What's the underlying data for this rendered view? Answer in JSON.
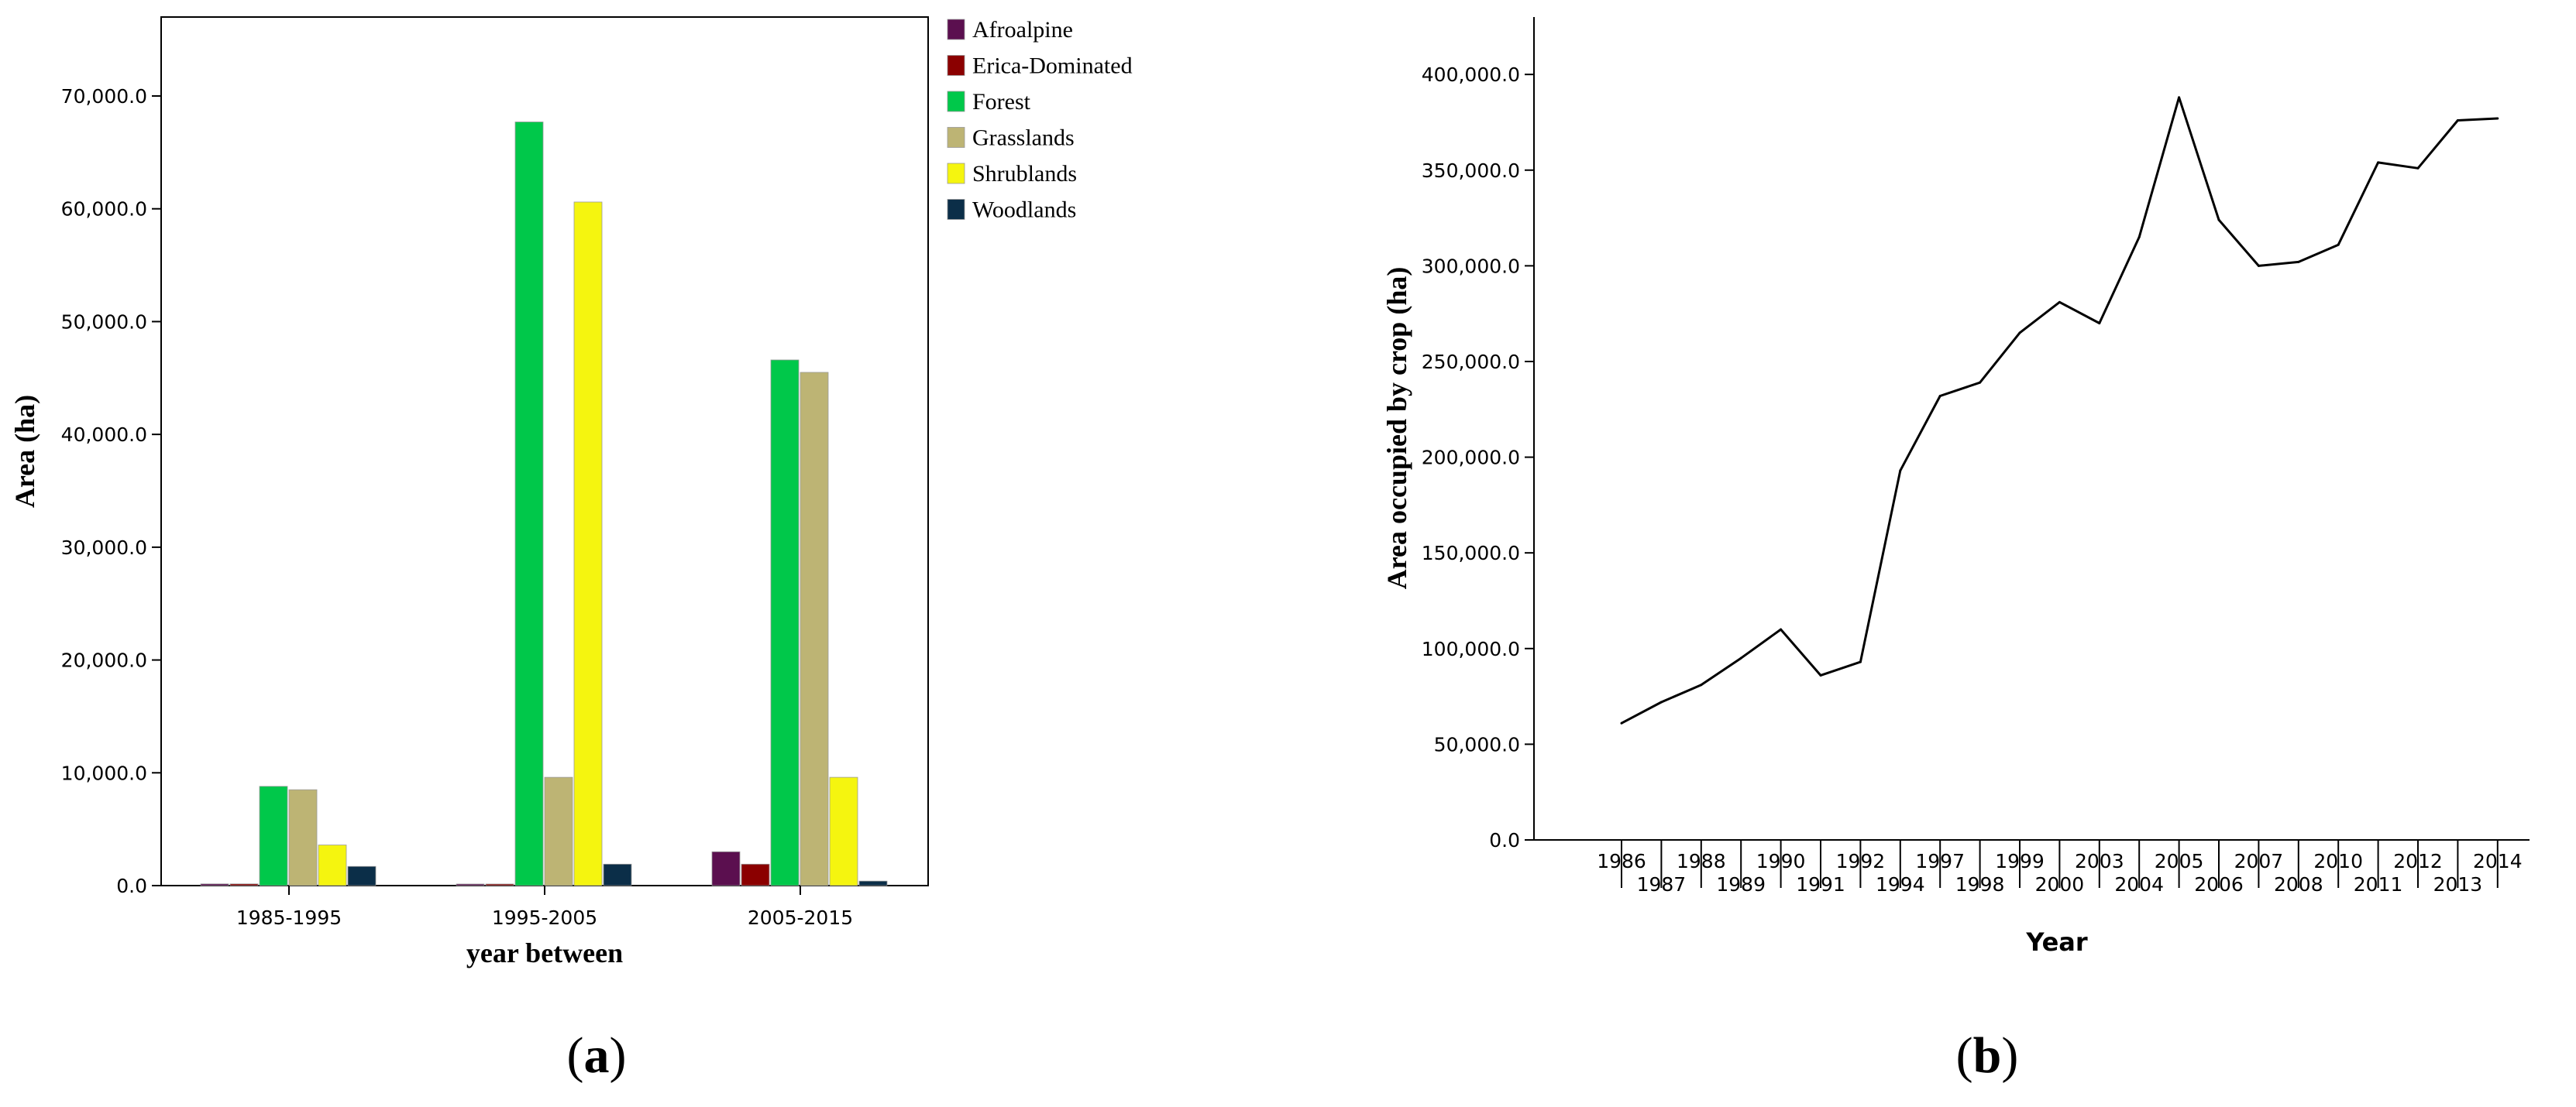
{
  "chart_data": [
    {
      "type": "bar",
      "panel_label": "a",
      "xlabel": "year between",
      "ylabel": "Area (ha)",
      "ylim": [
        0,
        77000
      ],
      "yticks": [
        0,
        10000,
        20000,
        30000,
        40000,
        50000,
        60000,
        70000
      ],
      "ytick_labels": [
        "0.0",
        "10,000.0",
        "20,000.0",
        "30,000.0",
        "40,000.0",
        "50,000.0",
        "60,000.0",
        "70,000.0"
      ],
      "legend_position": "top-right",
      "categories": [
        "1985-1995",
        "1995-2005",
        "2005-2015"
      ],
      "series": [
        {
          "name": "Afroalpine",
          "color": "#5b0f4f",
          "values": [
            150,
            0,
            3000
          ]
        },
        {
          "name": "Erica-Dominated",
          "color": "#8b0000",
          "values": [
            150,
            0,
            1900
          ]
        },
        {
          "name": "Forest",
          "color": "#00c84a",
          "values": [
            8800,
            67700,
            46600
          ]
        },
        {
          "name": "Grasslands",
          "color": "#bdb474",
          "values": [
            8500,
            9600,
            45500
          ]
        },
        {
          "name": "Shrublands",
          "color": "#f5f50f",
          "values": [
            3600,
            60600,
            9600
          ]
        },
        {
          "name": "Woodlands",
          "color": "#0b2e48",
          "values": [
            1700,
            1900,
            400
          ]
        }
      ]
    },
    {
      "type": "line",
      "panel_label": "b",
      "xlabel": "Year",
      "ylabel": "Area occupied by crop  (ha)",
      "ylim": [
        0,
        430000
      ],
      "yticks": [
        0,
        50000,
        100000,
        150000,
        200000,
        250000,
        300000,
        350000,
        400000
      ],
      "ytick_labels": [
        "0.0",
        "50,000.0",
        "100,000.0",
        "150,000.0",
        "200,000.0",
        "250,000.0",
        "300,000.0",
        "350,000.0",
        "400,000.0"
      ],
      "x": [
        "1986",
        "1987",
        "1988",
        "1989",
        "1990",
        "1991",
        "1992",
        "1994",
        "1997",
        "1998",
        "1999",
        "2000",
        "2003",
        "2004",
        "2005",
        "2006",
        "2007",
        "2008",
        "2010",
        "2011",
        "2012",
        "2013",
        "2014"
      ],
      "series": [
        {
          "color": "#000000",
          "values": [
            61000,
            72000,
            81000,
            95000,
            110000,
            86000,
            93000,
            193000,
            232000,
            239000,
            265000,
            281000,
            270000,
            315000,
            388000,
            324000,
            300000,
            302000,
            311000,
            354000,
            351000,
            376000,
            377000
          ]
        }
      ]
    }
  ]
}
